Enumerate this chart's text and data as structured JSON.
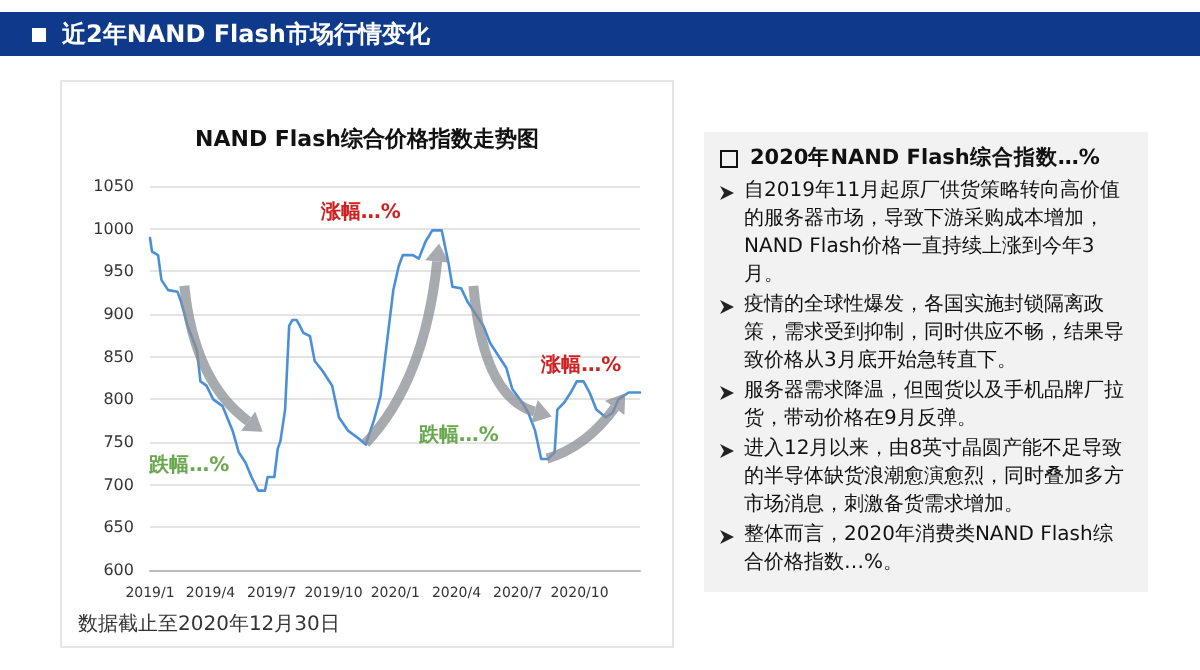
{
  "chart_data": [
    {
      "type": "line",
      "title": "NAND Flash综合价格指数走势图",
      "annotations": [
        "近2年NAND Flash市场行情变化",
        "跌幅…%",
        "涨幅…%",
        "跌幅…%",
        "涨幅…%",
        "数据截止至2020年12月30日"
      ],
      "x": [
        "2019-01-01",
        "2019-01-04",
        "2019-01-13",
        "2019-01-18",
        "2019-01-28",
        "2019-02-11",
        "2019-02-16",
        "2019-02-26",
        "2019-03-12",
        "2019-03-17",
        "2019-03-26",
        "2019-04-05",
        "2019-04-19",
        "2019-05-04",
        "2019-05-13",
        "2019-05-23",
        "2019-06-01",
        "2019-06-11",
        "2019-06-21",
        "2019-06-25",
        "2019-07-05",
        "2019-07-10",
        "2019-07-14",
        "2019-07-21",
        "2019-07-27",
        "2019-08-01",
        "2019-08-07",
        "2019-08-12",
        "2019-08-17",
        "2019-08-27",
        "2019-09-03",
        "2019-09-15",
        "2019-09-29",
        "2019-10-09",
        "2019-10-23",
        "2019-11-06",
        "2019-11-18",
        "2019-11-30",
        "2019-12-10",
        "2019-12-20",
        "2019-12-29",
        "2020-01-06",
        "2020-01-12",
        "2020-01-27",
        "2020-02-05",
        "2020-02-15",
        "2020-02-25",
        "2020-03-10",
        "2020-03-20",
        "2020-03-26",
        "2020-04-08",
        "2020-04-17",
        "2020-04-27",
        "2020-05-11",
        "2020-05-21",
        "2020-06-04",
        "2020-06-14",
        "2020-06-23",
        "2020-07-08",
        "2020-07-17",
        "2020-07-27",
        "2020-08-05",
        "2020-08-15",
        "2020-08-25",
        "2020-08-29",
        "2020-09-08",
        "2020-09-18",
        "2020-09-27",
        "2020-10-07",
        "2020-10-16",
        "2020-10-26",
        "2020-11-09",
        "2020-11-19",
        "2020-11-28",
        "2020-12-13",
        "2020-12-30"
      ],
      "series": [
        {
          "color": "#4a90d9",
          "values": [
            989,
            973,
            969,
            940,
            928,
            926,
            915,
            886,
            857,
            821,
            816,
            800,
            792,
            763,
            738,
            726,
            709,
            693,
            693,
            709,
            709,
            742,
            751,
            788,
            886,
            893,
            893,
            886,
            878,
            874,
            845,
            833,
            816,
            779,
            763,
            755,
            747,
            775,
            804,
            870,
            928,
            956,
            969,
            969,
            965,
            985,
            998,
            998,
            960,
            932,
            930,
            915,
            903,
            886,
            866,
            849,
            837,
            812,
            796,
            784,
            763,
            730,
            730,
            738,
            788,
            796,
            808,
            821,
            821,
            808,
            788,
            779,
            784,
            800,
            808,
            808
          ]
        }
      ],
      "xlim": [
        "2019-01-01",
        "2020-12-30"
      ],
      "xticks": [
        {
          "value": "2019-01",
          "label": "2019/1"
        },
        {
          "value": "2019-04",
          "label": "2019/4"
        },
        {
          "value": "2019-07",
          "label": "2019/7"
        },
        {
          "value": "2019-10",
          "label": "2019/10"
        },
        {
          "value": "2020-01",
          "label": "2020/1"
        },
        {
          "value": "2020-04",
          "label": "2020/4"
        },
        {
          "value": "2020-07",
          "label": "2020/7"
        },
        {
          "value": "2020-10",
          "label": "2020/10"
        }
      ],
      "ylim": [
        600,
        1050
      ],
      "yticks": [
        600,
        650,
        700,
        750,
        800,
        850,
        900,
        950,
        1000,
        1050
      ],
      "grid": "y",
      "marker": "none",
      "line_style": "solid"
    },
    {
      "type": "other",
      "title": "2020年NAND Flash综合指数…%",
      "annotations": [
        "自2019年11月起原厂供货策略转向高价值的服务器市场，导致下游采购成本增加，NAND Flash价格一直持续上涨到今年3月。",
        "疫情的全球性爆发，各国实施封锁隔离政策，需求受到抑制，同时供应不畅，结果导致价格从3月底开始急转直下。",
        "服务器需求降温，但囤货以及手机品牌厂拉货，带动价格在9月反弹。",
        "进入12月以来，由8英寸晶圆产能不足导致的半导体缺货浪潮愈演愈烈，同时叠加多方市场消息，刺激备货需求增加。",
        "整体而言，2020年消费类NAND Flash综合价格指数…%。"
      ]
    }
  ]
}
